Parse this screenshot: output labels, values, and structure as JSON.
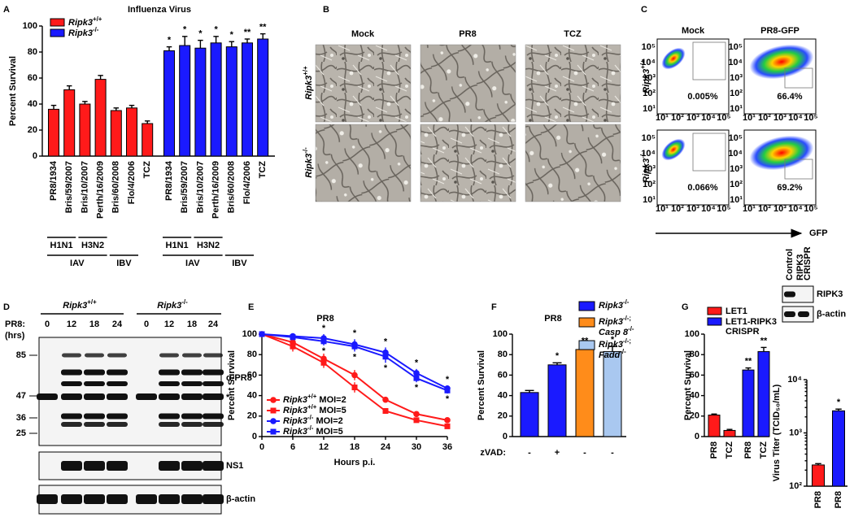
{
  "chart_data": [
    {
      "type": "bar",
      "panel": "A",
      "title": "Influenza Virus",
      "y_label": "Percent Survival",
      "categories": [
        "PR8/1934",
        "Bris/59/2007",
        "Bris/10/2007",
        "Perth/16/2009",
        "Bris/60/2008",
        "Flo/4/2006",
        "TCZ",
        "PR8/1934",
        "Bris/59/2007",
        "Bris/10/2007",
        "Perth/16/2009",
        "Bris/60/2008",
        "Flo/4/2006",
        "TCZ"
      ],
      "series": [
        {
          "name": "Ripk3",
          "superscript": "+/+",
          "color": "#ff1a1a",
          "values": [
            36,
            51,
            40,
            59,
            35,
            37,
            25,
            null,
            null,
            null,
            null,
            null,
            null,
            null
          ],
          "errors": [
            3,
            3,
            2,
            3,
            2,
            2,
            2,
            null,
            null,
            null,
            null,
            null,
            null,
            null
          ]
        },
        {
          "name": "Ripk3",
          "superscript": "-/-",
          "color": "#1a1aff",
          "values": [
            null,
            null,
            null,
            null,
            null,
            null,
            null,
            81,
            85,
            83,
            87,
            84,
            87,
            90
          ],
          "errors": [
            null,
            null,
            null,
            null,
            null,
            null,
            null,
            3,
            7,
            6,
            5,
            4,
            3,
            4
          ]
        }
      ],
      "annotations": [
        null,
        null,
        null,
        null,
        null,
        null,
        null,
        "*",
        "*",
        "*",
        "*",
        "*",
        "**",
        "**"
      ],
      "group_labels": [
        "H1N1",
        "H3N2",
        "IAV",
        "IBV",
        "H1N1",
        "H3N2",
        "IAV",
        "IBV"
      ],
      "ylim": [
        0,
        100
      ],
      "yticks": [
        0,
        20,
        40,
        60,
        80,
        100
      ]
    },
    {
      "type": "line",
      "panel": "E",
      "title": "PR8",
      "x_label": "Hours p.i.",
      "y_label": "Percent Survival",
      "x": [
        0,
        6,
        12,
        18,
        24,
        30,
        36
      ],
      "xlim": [
        0,
        36
      ],
      "xticks": [
        0,
        6,
        12,
        18,
        24,
        30,
        36
      ],
      "ylim": [
        0,
        100
      ],
      "yticks": [
        0,
        20,
        40,
        60,
        80,
        100
      ],
      "series": [
        {
          "name": "Ripk3",
          "superscript": "+/+",
          "condition": "MOI=2",
          "color": "#ff1a1a",
          "marker": "circle",
          "values": [
            100,
            92,
            76,
            60,
            36,
            22,
            16
          ],
          "errors": [
            0,
            5,
            5,
            5,
            1,
            1,
            1
          ]
        },
        {
          "name": "Ripk3",
          "superscript": "+/+",
          "condition": "MOI=5",
          "color": "#ff1a1a",
          "marker": "square",
          "values": [
            100,
            88,
            72,
            48,
            25,
            16,
            10
          ],
          "errors": [
            0,
            5,
            5,
            5,
            2,
            2,
            2
          ]
        },
        {
          "name": "Ripk3",
          "superscript": "-/-",
          "condition": "MOI=2",
          "color": "#1a1aff",
          "marker": "circle",
          "values": [
            100,
            98,
            96,
            90,
            82,
            62,
            47
          ],
          "errors": [
            0,
            2,
            4,
            5,
            5,
            4,
            3
          ]
        },
        {
          "name": "Ripk3",
          "superscript": "-/-",
          "condition": "MOI=5",
          "color": "#1a1aff",
          "marker": "square",
          "values": [
            100,
            97,
            93,
            88,
            78,
            57,
            45
          ],
          "errors": [
            0,
            2,
            4,
            5,
            6,
            4,
            3
          ]
        }
      ],
      "annotations_upper": [
        null,
        null,
        "*",
        "*",
        "*",
        "*",
        "*"
      ],
      "annotations_lower": [
        null,
        null,
        "*",
        "*",
        "*",
        "*",
        "*"
      ]
    },
    {
      "type": "bar",
      "panel": "F",
      "title": "PR8",
      "y_label": "Percent Survival",
      "category_axis_label": "zVAD:",
      "categories": [
        "-",
        "+",
        "-",
        "-"
      ],
      "values": [
        43,
        70,
        85,
        83
      ],
      "errors": [
        2,
        2,
        2,
        5
      ],
      "colors": [
        "#1a1aff",
        "#1a1aff",
        "#ff8c1a",
        "#a9c8f0"
      ],
      "annotations": [
        null,
        "*",
        "**",
        "*"
      ],
      "legend": [
        {
          "color": "#1a1aff",
          "lines": [
            {
              "name": "Ripk3",
              "superscript": "-/-"
            }
          ]
        },
        {
          "color": "#ff8c1a",
          "lines": [
            {
              "name": "Ripk3",
              "superscript": "-/-;"
            },
            {
              "name": "Casp 8",
              "superscript": "-/-"
            }
          ]
        },
        {
          "color": "#a9c8f0",
          "lines": [
            {
              "name": "Ripk3",
              "superscript": "-/-;"
            },
            {
              "name": "Fadd",
              "superscript": "-/-"
            }
          ]
        }
      ],
      "ylim": [
        0,
        100
      ],
      "yticks": [
        0,
        20,
        40,
        60,
        80,
        100
      ]
    },
    {
      "type": "bar",
      "panel": "G",
      "y_label": "Percent Survival",
      "categories": [
        "PR8",
        "TCZ",
        "PR8",
        "TCZ"
      ],
      "series": [
        {
          "name": [
            "LET1"
          ],
          "color": "#ff1a1a",
          "values": [
            21,
            6,
            null,
            null
          ],
          "errors": [
            1,
            1,
            null,
            null
          ]
        },
        {
          "name": [
            "LET1-RIPK3",
            "CRISPR"
          ],
          "color": "#1a1aff",
          "values": [
            null,
            null,
            65,
            83
          ],
          "errors": [
            null,
            null,
            2,
            4
          ]
        }
      ],
      "annotations": [
        null,
        null,
        "**",
        "**"
      ],
      "ylim": [
        0,
        100
      ],
      "yticks": [
        0,
        20,
        40,
        60,
        80,
        100
      ]
    },
    {
      "type": "bar",
      "log_scale": true,
      "y_label": "Virus Titer (TCID₅₀/mL)",
      "categories": [
        "PR8",
        "PR8"
      ],
      "series": [
        {
          "color": "#ff1a1a",
          "values": [
            250,
            null
          ],
          "errors": [
            15,
            null
          ]
        },
        {
          "color": "#1a1aff",
          "values": [
            null,
            2600
          ],
          "errors": [
            null,
            200
          ]
        }
      ],
      "annotations": [
        null,
        "*"
      ],
      "ylim": [
        100,
        10000
      ],
      "yticks": [
        {
          "value": 100,
          "label": "10²"
        },
        {
          "value": 1000,
          "label": "10³"
        },
        {
          "value": 10000,
          "label": "10⁴"
        }
      ]
    }
  ],
  "microscopy": {
    "panel": "B",
    "columns": [
      "Mock",
      "PR8",
      "TCZ"
    ],
    "rows": [
      {
        "name": "Ripk3",
        "superscript": "+/+"
      },
      {
        "name": "Ripk3",
        "superscript": "-/-"
      }
    ]
  },
  "flow": {
    "panel": "C",
    "columns": [
      "Mock",
      "PR8-GFP"
    ],
    "rows": [
      {
        "name": "Ripk3",
        "superscript": "+/+"
      },
      {
        "name": "Ripk3",
        "superscript": "-/-"
      }
    ],
    "percentages": [
      [
        "0.005%",
        "66.4%"
      ],
      [
        "0.066%",
        "69.2%"
      ]
    ],
    "axis_label": "GFP",
    "ticks": [
      "10¹",
      "10²",
      "10³",
      "10⁴",
      "10⁵"
    ]
  },
  "western": {
    "panel": "D",
    "groups": [
      {
        "name": "Ripk3",
        "superscript": "+/+"
      },
      {
        "name": "Ripk3",
        "superscript": "-/-"
      }
    ],
    "row_label": "PR8:",
    "unit": "(hrs)",
    "lanes": [
      0,
      12,
      18,
      24
    ],
    "markers": [
      85,
      47,
      36,
      25
    ],
    "bands": [
      "α-PR8",
      "*",
      "NS1",
      "β-actin"
    ]
  },
  "blot_inset": {
    "lanes": [
      [
        "Control"
      ],
      [
        "RIPK3",
        "CRISPR"
      ]
    ],
    "bands": [
      "RIPK3",
      "β-actin"
    ]
  }
}
